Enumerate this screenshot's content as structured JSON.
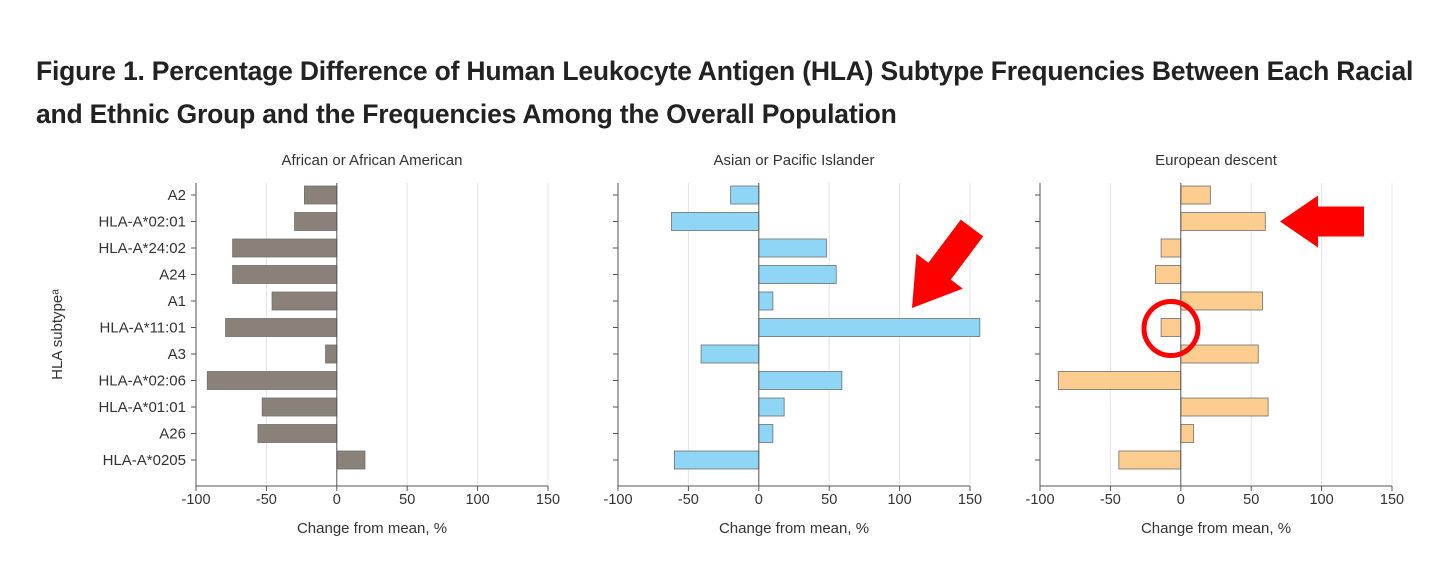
{
  "figure": {
    "title_line1": "Figure 1.  Percentage Difference of Human Leukocyte Antigen (HLA) Subtype Frequencies Between Each Racial",
    "title_line2": "and Ethnic Group and the Frequencies Among the Overall Population"
  },
  "chart_data": [
    {
      "type": "bar",
      "orientation": "horizontal",
      "title": "African or African American",
      "ylabel": "HLA subtypeᵃ",
      "xlabel": "Change from mean, %",
      "xlim": [
        -100,
        150
      ],
      "xticks": [
        -100,
        -50,
        0,
        50,
        100,
        150
      ],
      "grid": true,
      "color": "#8a8178",
      "categories": [
        "A2",
        "HLA-A*02:01",
        "HLA-A*24:02",
        "A24",
        "A1",
        "HLA-A*11:01",
        "A3",
        "HLA-A*02:06",
        "HLA-A*01:01",
        "A26",
        "HLA-A*0205"
      ],
      "values": [
        -23,
        -30,
        -74,
        -74,
        -46,
        -79,
        -8,
        -92,
        -53,
        -56,
        20
      ]
    },
    {
      "type": "bar",
      "orientation": "horizontal",
      "title": "Asian or Pacific Islander",
      "xlabel": "Change from mean, %",
      "xlim": [
        -100,
        150
      ],
      "xticks": [
        -100,
        -50,
        0,
        50,
        100,
        150
      ],
      "grid": true,
      "color": "#8fd6f6",
      "categories": [
        "A2",
        "HLA-A*02:01",
        "HLA-A*24:02",
        "A24",
        "A1",
        "HLA-A*11:01",
        "A3",
        "HLA-A*02:06",
        "HLA-A*01:01",
        "A26",
        "HLA-A*0205"
      ],
      "values": [
        -20,
        -62,
        48,
        55,
        10,
        157,
        -41,
        59,
        18,
        10,
        -60
      ]
    },
    {
      "type": "bar",
      "orientation": "horizontal",
      "title": "European descent",
      "xlabel": "Change from mean, %",
      "xlim": [
        -100,
        150
      ],
      "xticks": [
        -100,
        -50,
        0,
        50,
        100,
        150
      ],
      "grid": true,
      "color": "#fdcc8f",
      "categories": [
        "A2",
        "HLA-A*02:01",
        "HLA-A*24:02",
        "A24",
        "A1",
        "HLA-A*11:01",
        "A3",
        "HLA-A*02:06",
        "HLA-A*01:01",
        "A26",
        "HLA-A*0205"
      ],
      "values": [
        21,
        60,
        -14,
        -18,
        58,
        -14,
        55,
        -87,
        62,
        9,
        -44
      ]
    }
  ],
  "annotations": {
    "arrow_color": "#ff0000",
    "asian_arrow_target": "HLA-A*11:01",
    "european_arrow_target": "HLA-A*02:01",
    "european_circle_target": "HLA-A*11:01"
  }
}
